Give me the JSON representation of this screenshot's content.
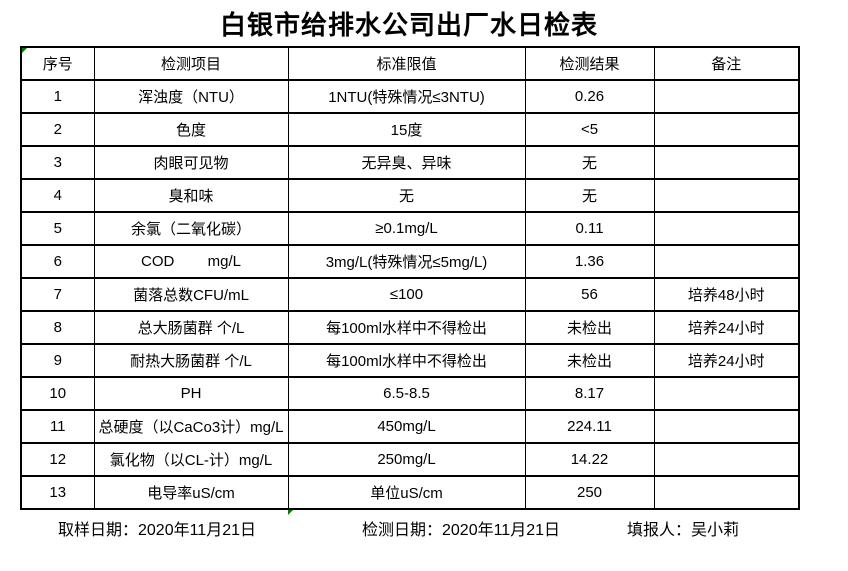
{
  "title": "白银市给排水公司出厂水日检表",
  "colors": {
    "border": "#000000",
    "text": "#000000",
    "background": "#ffffff",
    "indicator_green": "#008000"
  },
  "table": {
    "headers": [
      "序号",
      "检测项目",
      "标准限值",
      "检测结果",
      "备注"
    ],
    "rows": [
      {
        "no": "1",
        "item": "浑浊度（NTU）",
        "standard": "1NTU(特殊情况≤3NTU)",
        "result": "0.26",
        "remark": ""
      },
      {
        "no": "2",
        "item": "色度",
        "standard": "15度",
        "result": "<5",
        "remark": ""
      },
      {
        "no": "3",
        "item": "肉眼可见物",
        "standard": "无异臭、异味",
        "result": "无",
        "remark": ""
      },
      {
        "no": "4",
        "item": "臭和味",
        "standard": "无",
        "result": "无",
        "remark": ""
      },
      {
        "no": "5",
        "item": "余氯（二氧化碳）",
        "standard": "≥0.1mg/L",
        "result": "0.11",
        "remark": ""
      },
      {
        "no": "6",
        "item": "COD        mg/L",
        "standard": "3mg/L(特殊情况≤5mg/L)",
        "result": "1.36",
        "remark": ""
      },
      {
        "no": "7",
        "item": "菌落总数CFU/mL",
        "standard": "≤100",
        "result": "56",
        "remark": "培养48小时"
      },
      {
        "no": "8",
        "item": "总大肠菌群 个/L",
        "standard": "每100ml水样中不得检出",
        "result": "未检出",
        "remark": "培养24小时"
      },
      {
        "no": "9",
        "item": "耐热大肠菌群 个/L",
        "standard": "每100ml水样中不得检出",
        "result": "未检出",
        "remark": "培养24小时"
      },
      {
        "no": "10",
        "item": "PH",
        "standard": "6.5-8.5",
        "result": "8.17",
        "remark": ""
      },
      {
        "no": "11",
        "item": "总硬度（以CaCo3计）mg/L",
        "standard": "450mg/L",
        "result": "224.11",
        "remark": ""
      },
      {
        "no": "12",
        "item": "氯化物（以CL-计）mg/L",
        "standard": "250mg/L",
        "result": "14.22",
        "remark": ""
      },
      {
        "no": "13",
        "item": "电导率uS/cm",
        "standard": "单位uS/cm",
        "result": "250",
        "remark": ""
      }
    ]
  },
  "footer": {
    "sampling_date": "取样日期：2020年11月21日",
    "testing_date": "检测日期：2020年11月21日",
    "reporter": "填报人：吴小莉"
  }
}
